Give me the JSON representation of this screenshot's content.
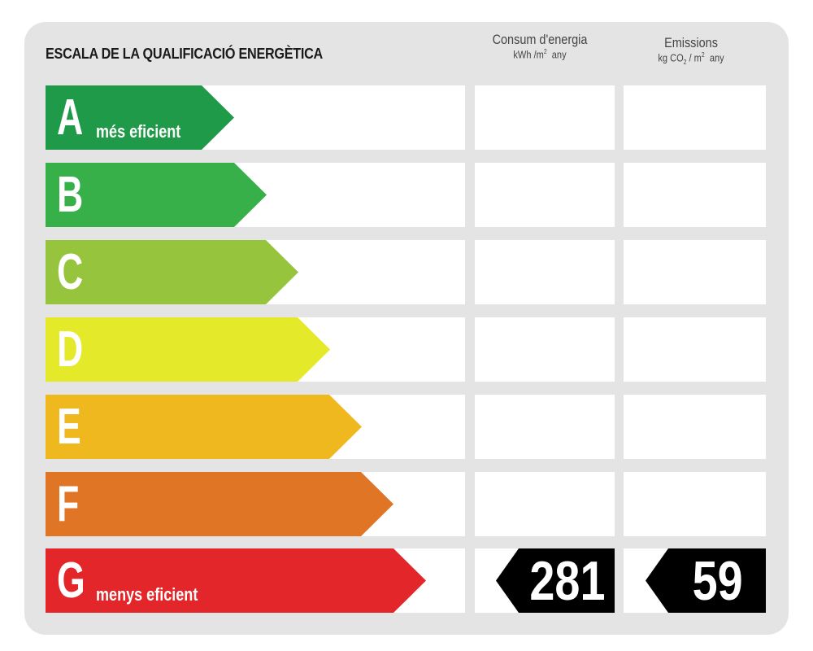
{
  "title": "ESCALA DE LA QUALIFICACIÓ ENERGÈTICA",
  "columns": {
    "energy": {
      "label": "Consum d'energia",
      "unit_main": "kWh /m",
      "unit_exp": "2",
      "unit_suffix": "any"
    },
    "emissions": {
      "label": "Emissions",
      "unit_main": "kg CO",
      "unit_sub": "2",
      "unit_mid": "/ m",
      "unit_exp": "2",
      "unit_suffix": "any"
    }
  },
  "classes": [
    {
      "letter": "A",
      "label": "més eficient",
      "color": "#1f9a48"
    },
    {
      "letter": "B",
      "label": "",
      "color": "#37b04a"
    },
    {
      "letter": "C",
      "label": "",
      "color": "#96c43d"
    },
    {
      "letter": "D",
      "label": "",
      "color": "#e4e92a"
    },
    {
      "letter": "E",
      "label": "",
      "color": "#efb81f"
    },
    {
      "letter": "F",
      "label": "",
      "color": "#e17526"
    },
    {
      "letter": "G",
      "label": "menys eficient",
      "color": "#e2262a"
    }
  ],
  "rating": {
    "class": "G",
    "energy_value": "281",
    "emissions_value": "59"
  },
  "colors": {
    "badge": "#000000",
    "panel": "#e4e4e4"
  }
}
